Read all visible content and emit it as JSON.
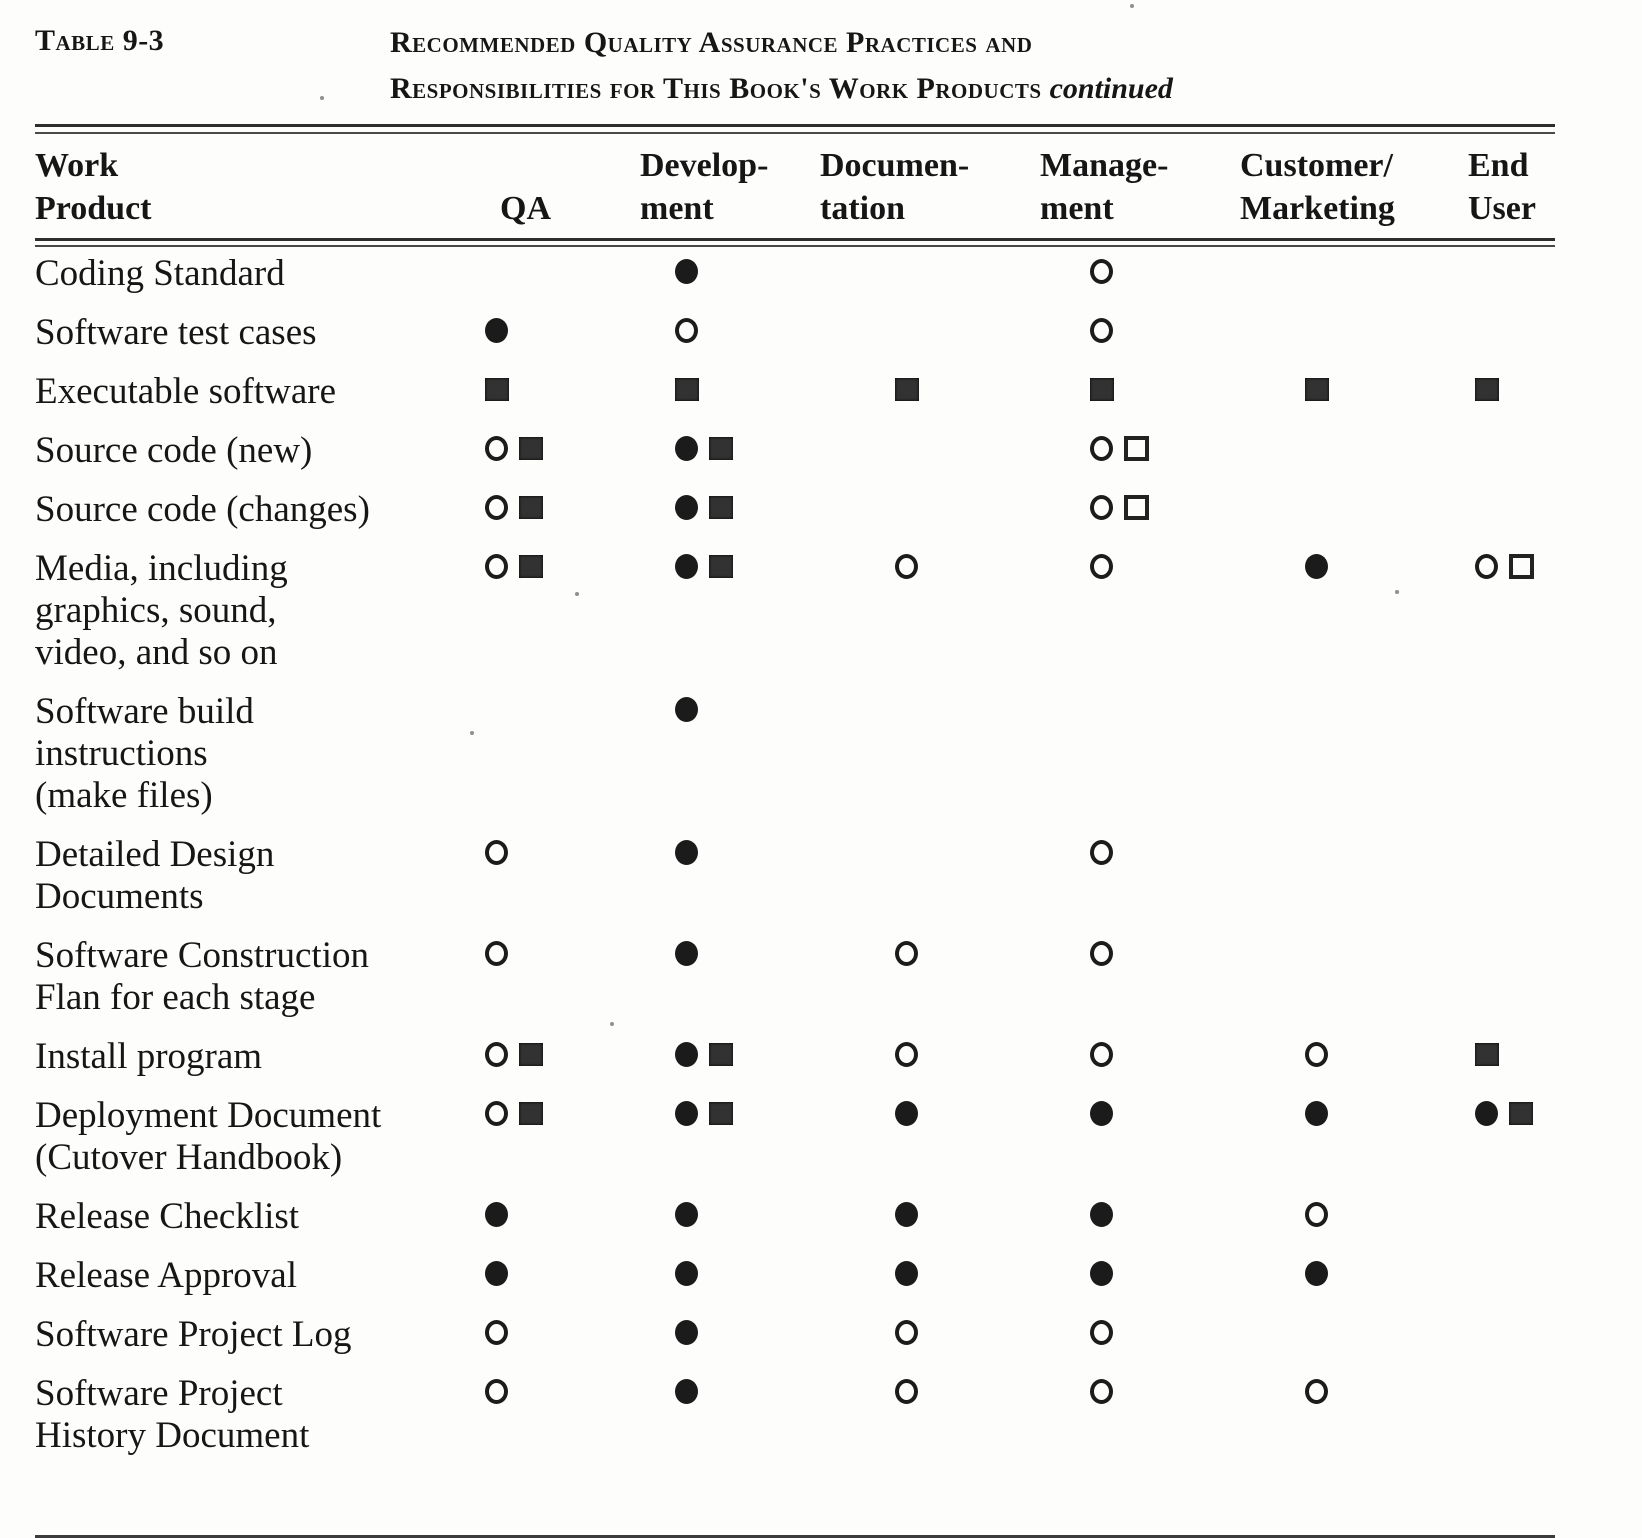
{
  "caption": {
    "label": "Table 9-3",
    "title_line1": "Recommended Quality Assurance Practices and",
    "title_line2": "Responsibilities for This Book's Work Products",
    "continued": "continued"
  },
  "ink_color": "#161616",
  "paper_color": "#fdfdfc",
  "symbol_glyphs": {
    "open-circle": "○",
    "filled-circle": "●",
    "filled-square": "■",
    "open-square": "□"
  },
  "table": {
    "columns": [
      {
        "id": "product",
        "lines": [
          "Work",
          "Product"
        ]
      },
      {
        "id": "qa",
        "lines": [
          "QA"
        ]
      },
      {
        "id": "development",
        "lines": [
          "Develop-",
          "ment"
        ]
      },
      {
        "id": "documentation",
        "lines": [
          "Documen-",
          "tation"
        ]
      },
      {
        "id": "management",
        "lines": [
          "Manage-",
          "ment"
        ]
      },
      {
        "id": "customer_marketing",
        "lines": [
          "Customer/",
          "Marketing"
        ]
      },
      {
        "id": "end_user",
        "lines": [
          "End",
          "User"
        ]
      }
    ],
    "rows": [
      {
        "product": [
          "Coding Standard"
        ],
        "cells": {
          "development": [
            "filled-circle"
          ],
          "management": [
            "open-circle"
          ]
        }
      },
      {
        "product": [
          "Software test cases"
        ],
        "cells": {
          "qa": [
            "filled-circle"
          ],
          "development": [
            "open-circle"
          ],
          "management": [
            "open-circle"
          ]
        }
      },
      {
        "product": [
          "Executable software"
        ],
        "cells": {
          "qa": [
            "filled-square"
          ],
          "development": [
            "filled-square"
          ],
          "documentation": [
            "filled-square"
          ],
          "management": [
            "filled-square"
          ],
          "customer_marketing": [
            "filled-square"
          ],
          "end_user": [
            "filled-square"
          ]
        }
      },
      {
        "product": [
          "Source code (new)"
        ],
        "cells": {
          "qa": [
            "open-circle",
            "filled-square"
          ],
          "development": [
            "filled-circle",
            "filled-square"
          ],
          "management": [
            "open-circle",
            "open-square"
          ]
        }
      },
      {
        "product": [
          "Source code (changes)"
        ],
        "cells": {
          "qa": [
            "open-circle",
            "filled-square"
          ],
          "development": [
            "filled-circle",
            "filled-square"
          ],
          "management": [
            "open-circle",
            "open-square"
          ]
        }
      },
      {
        "product": [
          "Media, including",
          "graphics, sound,",
          "video, and so on"
        ],
        "cells": {
          "qa": [
            "open-circle",
            "filled-square"
          ],
          "development": [
            "filled-circle",
            "filled-square"
          ],
          "documentation": [
            "open-circle"
          ],
          "management": [
            "open-circle"
          ],
          "customer_marketing": [
            "filled-circle"
          ],
          "end_user": [
            "open-circle",
            "open-square"
          ]
        }
      },
      {
        "product": [
          "Software  build",
          "instructions",
          "(make files)"
        ],
        "cells": {
          "development": [
            "filled-circle"
          ]
        }
      },
      {
        "product": [
          "Detailed Design",
          "Documents"
        ],
        "cells": {
          "qa": [
            "open-circle"
          ],
          "development": [
            "filled-circle"
          ],
          "management": [
            "open-circle"
          ]
        }
      },
      {
        "product": [
          "Software  Construction",
          "Flan for each stage"
        ],
        "cells": {
          "qa": [
            "open-circle"
          ],
          "development": [
            "filled-circle"
          ],
          "documentation": [
            "open-circle"
          ],
          "management": [
            "open-circle"
          ]
        }
      },
      {
        "product": [
          "Install program"
        ],
        "cells": {
          "qa": [
            "open-circle",
            "filled-square"
          ],
          "development": [
            "filled-circle",
            "filled-square"
          ],
          "documentation": [
            "open-circle"
          ],
          "management": [
            "open-circle"
          ],
          "customer_marketing": [
            "open-circle"
          ],
          "end_user": [
            "filled-square"
          ]
        }
      },
      {
        "product": [
          "Deployment Document",
          "(Cutover  Handbook)"
        ],
        "cells": {
          "qa": [
            "open-circle",
            "filled-square"
          ],
          "development": [
            "filled-circle",
            "filled-square"
          ],
          "documentation": [
            "filled-circle"
          ],
          "management": [
            "filled-circle"
          ],
          "customer_marketing": [
            "filled-circle"
          ],
          "end_user": [
            "filled-circle",
            "filled-square"
          ]
        }
      },
      {
        "product": [
          "Release  Checklist"
        ],
        "cells": {
          "qa": [
            "filled-circle"
          ],
          "development": [
            "filled-circle"
          ],
          "documentation": [
            "filled-circle"
          ],
          "management": [
            "filled-circle"
          ],
          "customer_marketing": [
            "open-circle"
          ]
        }
      },
      {
        "product": [
          "Release   Approval"
        ],
        "cells": {
          "qa": [
            "filled-circle"
          ],
          "development": [
            "filled-circle"
          ],
          "documentation": [
            "filled-circle"
          ],
          "management": [
            "filled-circle"
          ],
          "customer_marketing": [
            "filled-circle"
          ]
        }
      },
      {
        "product": [
          "Software  Project Log"
        ],
        "cells": {
          "qa": [
            "open-circle"
          ],
          "development": [
            "filled-circle"
          ],
          "documentation": [
            "open-circle"
          ],
          "management": [
            "open-circle"
          ]
        }
      },
      {
        "product": [
          "Software  Project",
          "History Document"
        ],
        "cells": {
          "qa": [
            "open-circle"
          ],
          "development": [
            "filled-circle"
          ],
          "documentation": [
            "open-circle"
          ],
          "management": [
            "open-circle"
          ],
          "customer_marketing": [
            "open-circle"
          ]
        }
      }
    ]
  }
}
